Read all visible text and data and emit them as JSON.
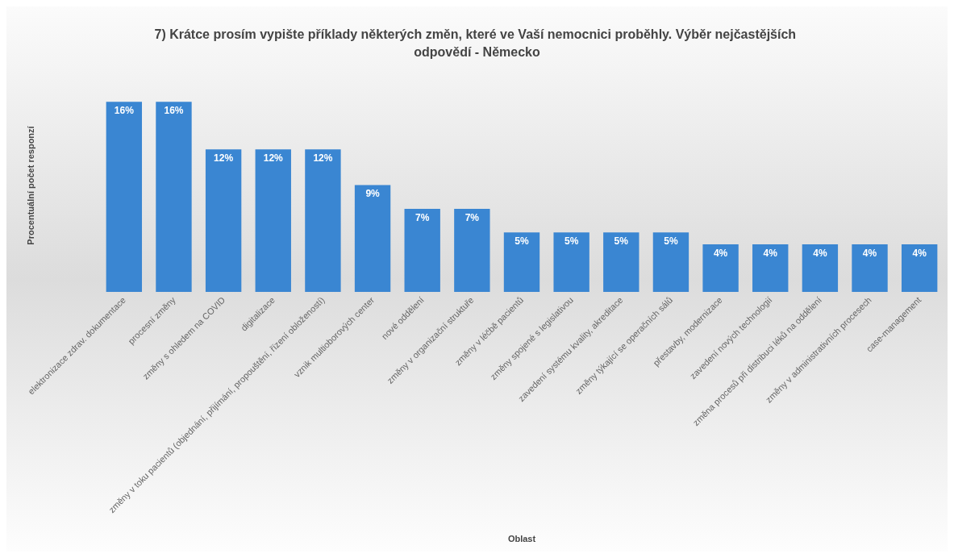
{
  "chart_data": {
    "type": "bar",
    "title": "7) Krátce prosím vypište příklady některých změn, které ve Vaší nemocnici proběhly. Výběr nejčastějších odpovědí - Německo",
    "xlabel": "Oblast",
    "ylabel": "Procentuální počet responzí",
    "categories": [
      "elektronizace zdrav. dokumentace",
      "procesní změny",
      "změny s ohledem na COVID",
      "digitalizace",
      "změny v toku pacientů (objednání, přijímání, propouštění, řízení obložeností)",
      "vznik multioborových center",
      "nové oddělení",
      "změny v organizační struktuře",
      "změny v léčbě pacientů",
      "změny spojené s legislativou",
      "zavedení systému kvality, akreditace",
      "změny týkající se operačních sálů",
      "přestavby, modernizace",
      "zavedení nových technologií",
      "změna procesů při distribuci léků na oddělení",
      "změny v administrativních procesech",
      "case-management"
    ],
    "values": [
      16,
      16,
      12,
      12,
      12,
      9,
      7,
      7,
      5,
      5,
      5,
      5,
      4,
      4,
      4,
      4,
      4
    ],
    "value_labels": [
      "16%",
      "16%",
      "12%",
      "12%",
      "12%",
      "9%",
      "7%",
      "7%",
      "5%",
      "5%",
      "5%",
      "5%",
      "4%",
      "4%",
      "4%",
      "4%",
      "4%"
    ],
    "color": "#3a86d2",
    "grid": false
  }
}
